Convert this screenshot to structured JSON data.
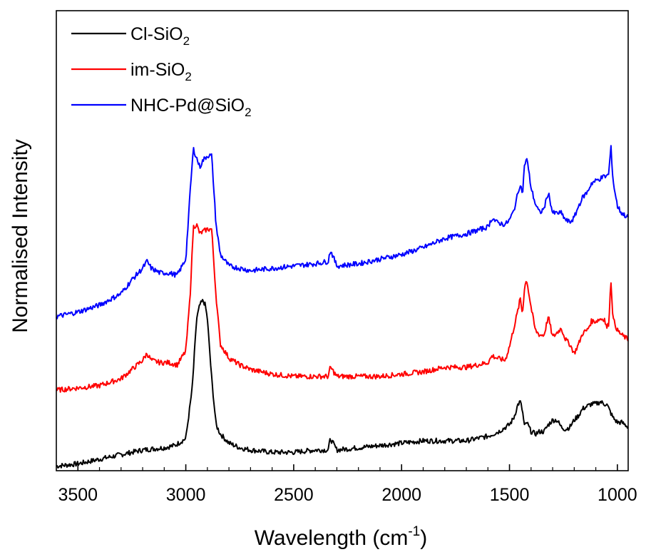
{
  "chart_data": {
    "type": "line",
    "xlabel": "Wavelength (cm",
    "xlabel_sup": "-1",
    "xlabel_end": ")",
    "ylabel": "Normalised Intensity",
    "xlim": [
      3600,
      950
    ],
    "x_reversed": true,
    "ylim": [
      0,
      100
    ],
    "y_ticks_shown": false,
    "x_ticks": [
      {
        "value": 3500,
        "label": "3500"
      },
      {
        "value": 3000,
        "label": "3000"
      },
      {
        "value": 2500,
        "label": "2500"
      },
      {
        "value": 2000,
        "label": "2000"
      },
      {
        "value": 1500,
        "label": "1500"
      },
      {
        "value": 1000,
        "label": "1000"
      }
    ],
    "grid": false,
    "legend": {
      "position": "top-left"
    },
    "series": [
      {
        "name": "Cl-SiO",
        "name_sub": "2",
        "color": "#000000",
        "x": [
          3600,
          3500,
          3400,
          3300,
          3200,
          3100,
          3050,
          3000,
          2970,
          2950,
          2935,
          2920,
          2910,
          2900,
          2880,
          2860,
          2840,
          2800,
          2750,
          2700,
          2600,
          2500,
          2400,
          2340,
          2330,
          2300,
          2200,
          2100,
          2000,
          1900,
          1800,
          1700,
          1600,
          1550,
          1500,
          1480,
          1460,
          1450,
          1440,
          1430,
          1420,
          1400,
          1380,
          1360,
          1340,
          1320,
          1300,
          1280,
          1260,
          1240,
          1220,
          1200,
          1180,
          1160,
          1140,
          1120,
          1100,
          1080,
          1060,
          1050,
          1040,
          1020,
          1000,
          980,
          950
        ],
        "y": [
          1.0,
          1.5,
          2.5,
          3.5,
          4.5,
          5.0,
          5.5,
          7.0,
          18.0,
          33.0,
          36.0,
          37.0,
          36.0,
          33.0,
          20.0,
          10.0,
          8.0,
          6.0,
          5.0,
          4.5,
          4.0,
          4.0,
          4.5,
          4.5,
          7.0,
          4.5,
          5.0,
          5.5,
          6.0,
          6.5,
          6.5,
          6.5,
          7.5,
          8.5,
          10.0,
          11.5,
          14.5,
          15.0,
          13.0,
          9.5,
          10.5,
          8.5,
          8.0,
          8.5,
          8.5,
          10.0,
          11.0,
          11.0,
          9.5,
          9.0,
          9.5,
          11.0,
          12.0,
          13.5,
          14.0,
          14.5,
          14.5,
          15.0,
          14.5,
          14.5,
          13.5,
          11.5,
          10.5,
          10.5,
          9.5
        ]
      },
      {
        "name": "im-SiO",
        "name_sub": "2",
        "color": "#ff0000",
        "x": [
          3600,
          3500,
          3400,
          3300,
          3250,
          3200,
          3180,
          3160,
          3120,
          3080,
          3040,
          3000,
          2980,
          2965,
          2950,
          2935,
          2920,
          2900,
          2880,
          2860,
          2840,
          2800,
          2750,
          2700,
          2600,
          2500,
          2400,
          2340,
          2330,
          2300,
          2200,
          2100,
          2000,
          1900,
          1800,
          1700,
          1600,
          1580,
          1560,
          1520,
          1500,
          1480,
          1460,
          1450,
          1440,
          1430,
          1420,
          1400,
          1380,
          1360,
          1340,
          1320,
          1300,
          1280,
          1260,
          1240,
          1220,
          1200,
          1180,
          1160,
          1140,
          1120,
          1100,
          1080,
          1060,
          1050,
          1040,
          1030,
          1020,
          1000,
          980,
          950
        ],
        "y": [
          17.5,
          18.0,
          18.5,
          20.0,
          22.0,
          24.0,
          25.5,
          24.0,
          23.5,
          23.5,
          23.0,
          26.0,
          38.0,
          53.0,
          53.5,
          51.5,
          52.0,
          52.5,
          52.5,
          38.0,
          27.5,
          24.5,
          23.0,
          22.0,
          21.0,
          20.5,
          20.5,
          20.5,
          22.5,
          20.5,
          20.5,
          20.5,
          21.0,
          21.5,
          22.5,
          22.5,
          23.5,
          25.0,
          24.5,
          24.0,
          27.0,
          31.0,
          35.0,
          37.5,
          34.0,
          40.0,
          41.5,
          35.5,
          30.5,
          29.5,
          29.5,
          33.5,
          29.0,
          30.0,
          31.0,
          28.5,
          27.5,
          25.5,
          27.5,
          30.0,
          30.5,
          32.5,
          32.5,
          33.0,
          33.0,
          31.0,
          32.0,
          41.5,
          33.0,
          30.5,
          29.5,
          28.5
        ]
      },
      {
        "name": "NHC-Pd@SiO",
        "name_sub": "2",
        "color": "#0000ff",
        "x": [
          3600,
          3500,
          3400,
          3300,
          3250,
          3200,
          3180,
          3160,
          3120,
          3080,
          3040,
          3000,
          2980,
          2965,
          2950,
          2935,
          2920,
          2900,
          2880,
          2860,
          2840,
          2800,
          2750,
          2700,
          2600,
          2500,
          2400,
          2340,
          2330,
          2300,
          2200,
          2100,
          2000,
          1900,
          1800,
          1700,
          1600,
          1580,
          1560,
          1520,
          1500,
          1480,
          1460,
          1450,
          1440,
          1430,
          1420,
          1400,
          1380,
          1360,
          1340,
          1320,
          1300,
          1280,
          1260,
          1240,
          1220,
          1200,
          1180,
          1160,
          1140,
          1120,
          1100,
          1080,
          1060,
          1050,
          1040,
          1030,
          1020,
          1000,
          980,
          950
        ],
        "y": [
          33.5,
          34.5,
          36.0,
          38.5,
          41.5,
          44.0,
          45.5,
          44.0,
          43.0,
          43.0,
          42.5,
          46.0,
          60.5,
          70.0,
          68.0,
          66.0,
          67.5,
          68.5,
          68.5,
          53.5,
          47.0,
          44.5,
          44.0,
          43.5,
          44.0,
          44.5,
          45.0,
          45.5,
          48.0,
          44.5,
          45.0,
          46.0,
          47.0,
          48.5,
          50.5,
          51.5,
          53.0,
          55.0,
          54.0,
          53.5,
          54.5,
          56.5,
          60.5,
          62.5,
          60.0,
          66.5,
          68.0,
          61.5,
          58.0,
          56.0,
          57.0,
          60.5,
          56.0,
          56.0,
          56.0,
          54.5,
          54.0,
          55.0,
          57.5,
          59.5,
          60.5,
          62.5,
          63.0,
          63.5,
          64.0,
          64.0,
          64.5,
          70.5,
          63.0,
          57.5,
          56.0,
          55.0
        ]
      }
    ]
  }
}
